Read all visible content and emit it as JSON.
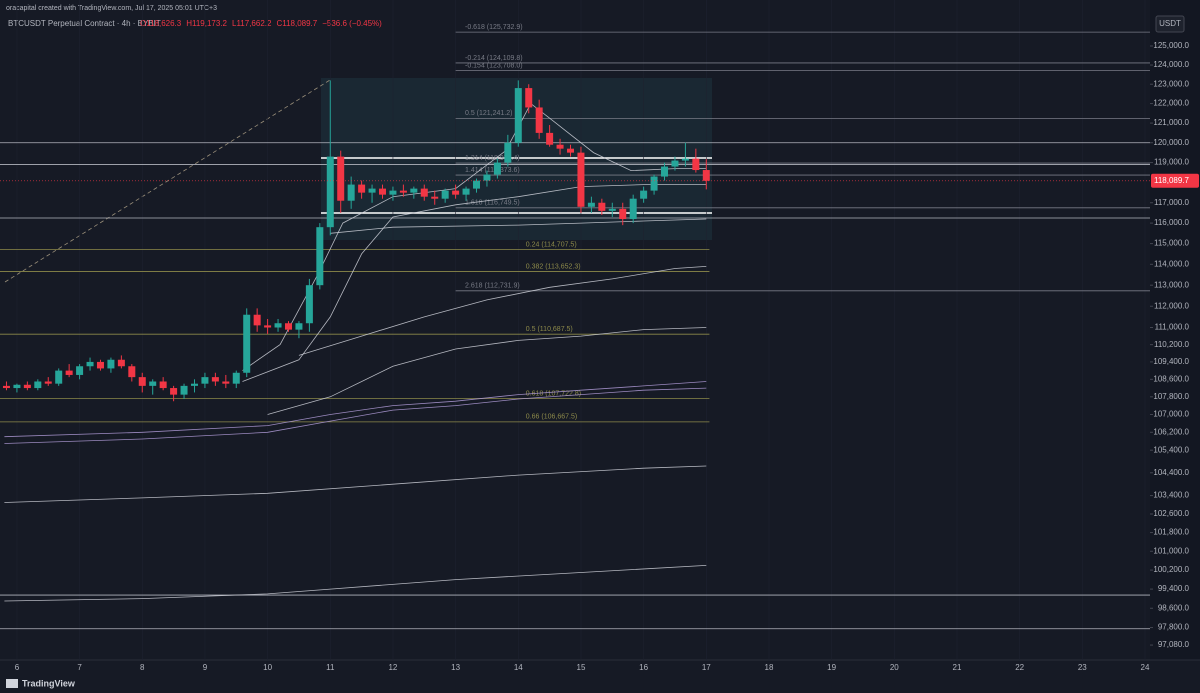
{
  "header": {
    "credit": "oracapital created with TradingView.com, Jul 17, 2025 05:01 UTC+3",
    "symbol": "BTCUSDT Perpetual Contract · 4h · BYBIT",
    "ohlc": [
      "O118,626.3",
      "H119,173.2",
      "L117,662.2",
      "C118,089.7",
      "−536.6 (−0.45%)"
    ],
    "currency": "USDT",
    "logo": "TradingView"
  },
  "chart_data": {
    "type": "candlestick",
    "log_scale": true,
    "up_color": "#26a69a",
    "down_color": "#f23645",
    "xlim": [
      5.73,
      24.08
    ],
    "xticks": [
      6,
      7,
      8,
      9,
      10,
      11,
      12,
      13,
      14,
      15,
      16,
      17,
      18,
      19,
      20,
      21,
      22,
      23,
      24
    ],
    "ylim": [
      96470,
      127450
    ],
    "yticks": [
      {
        "value": 125000,
        "label": "125,000.0"
      },
      {
        "value": 124000,
        "label": "124,000.0"
      },
      {
        "value": 123000,
        "label": "123,000.0"
      },
      {
        "value": 122000,
        "label": "122,000.0"
      },
      {
        "value": 121000,
        "label": "121,000.0"
      },
      {
        "value": 120000,
        "label": "120,000.0"
      },
      {
        "value": 119000,
        "label": "119,000.0"
      },
      {
        "value": 117000,
        "label": "117,000.0"
      },
      {
        "value": 116000,
        "label": "116,000.0"
      },
      {
        "value": 115000,
        "label": "115,000.0"
      },
      {
        "value": 114000,
        "label": "114,000.0"
      },
      {
        "value": 113000,
        "label": "113,000.0"
      },
      {
        "value": 112000,
        "label": "112,000.0"
      },
      {
        "value": 111000,
        "label": "111,000.0"
      },
      {
        "value": 110200,
        "label": "110,200.0"
      },
      {
        "value": 109400,
        "label": "109,400.0"
      },
      {
        "value": 108600,
        "label": "108,600.0"
      },
      {
        "value": 107800,
        "label": "107,800.0"
      },
      {
        "value": 107000,
        "label": "107,000.0"
      },
      {
        "value": 106200,
        "label": "106,200.0"
      },
      {
        "value": 105400,
        "label": "105,400.0"
      },
      {
        "value": 104400,
        "label": "104,400.0"
      },
      {
        "value": 103400,
        "label": "103,400.0"
      },
      {
        "value": 102600,
        "label": "102,600.0"
      },
      {
        "value": 101800,
        "label": "101,800.0"
      },
      {
        "value": 101000,
        "label": "101,000.0"
      },
      {
        "value": 100200,
        "label": "100,200.0"
      },
      {
        "value": 99400,
        "label": "99,400.0"
      },
      {
        "value": 98600,
        "label": "98,600.0"
      },
      {
        "value": 97800,
        "label": "97,800.0"
      },
      {
        "value": 97080,
        "label": "97,080.0"
      }
    ],
    "last_price": {
      "value": 118089.7,
      "label": "118,089.7"
    },
    "candles": {
      "x": [
        5.8333,
        6.0,
        6.1667,
        6.3333,
        6.5,
        6.6667,
        6.8333,
        7.0,
        7.1667,
        7.3333,
        7.5,
        7.6667,
        7.8333,
        8.0,
        8.1667,
        8.3333,
        8.5,
        8.6667,
        8.8333,
        9.0,
        9.1667,
        9.3333,
        9.5,
        9.6667,
        9.8333,
        10.0,
        10.1667,
        10.3333,
        10.5,
        10.6667,
        10.8333,
        11.0,
        11.1667,
        11.3333,
        11.5,
        11.6667,
        11.8333,
        12.0,
        12.1667,
        12.3333,
        12.5,
        12.6667,
        12.8333,
        13.0,
        13.1667,
        13.3333,
        13.5,
        13.6667,
        13.8333,
        14.0,
        14.1667,
        14.3333,
        14.5,
        14.6667,
        14.8333,
        15.0,
        15.1667,
        15.3333,
        15.5,
        15.6667,
        15.8333,
        16.0,
        16.1667,
        16.3333,
        16.5,
        16.6667,
        16.8333,
        17.0
      ],
      "open": [
        108300,
        108200,
        108350,
        108200,
        108500,
        108400,
        109000,
        108800,
        109200,
        109400,
        109100,
        109500,
        109200,
        108700,
        108300,
        108500,
        108200,
        107900,
        108300,
        108400,
        108700,
        108500,
        108400,
        108900,
        111600,
        111100,
        111000,
        111200,
        110900,
        111200,
        113000,
        115800,
        119300,
        117100,
        117900,
        117500,
        117700,
        117400,
        117600,
        117500,
        117700,
        117300,
        117200,
        117600,
        117400,
        117700,
        118100,
        118400,
        119000,
        120000,
        122800,
        121800,
        120500,
        119900,
        119700,
        119500,
        116800,
        117000,
        116600,
        116700,
        116200,
        117200,
        117600,
        118300,
        118800,
        119100,
        119200,
        118626.3
      ],
      "high": [
        108500,
        108400,
        108500,
        108600,
        108700,
        109100,
        109300,
        109300,
        109600,
        109500,
        109600,
        109700,
        109300,
        108900,
        108600,
        108700,
        108300,
        108400,
        108600,
        108900,
        108900,
        108800,
        109000,
        111900,
        111900,
        111400,
        111400,
        111300,
        111300,
        113300,
        116000,
        123200,
        119600,
        118300,
        118100,
        117900,
        117900,
        117800,
        117900,
        117800,
        117900,
        117600,
        117700,
        117900,
        117800,
        118200,
        118600,
        119200,
        120400,
        123200,
        123000,
        122200,
        120900,
        120200,
        119900,
        119800,
        117300,
        117200,
        117000,
        117000,
        117400,
        117800,
        118400,
        119000,
        119300,
        120000,
        119700,
        119173.2
      ],
      "low": [
        108100,
        108000,
        108100,
        108100,
        108300,
        108300,
        108700,
        108600,
        109000,
        109000,
        108900,
        109100,
        108500,
        108000,
        107900,
        108100,
        107600,
        107700,
        108000,
        108200,
        108300,
        108200,
        108200,
        108700,
        110800,
        110700,
        110800,
        110800,
        110500,
        110800,
        112800,
        115400,
        116500,
        116700,
        117200,
        117000,
        117200,
        117100,
        117300,
        117200,
        117100,
        116900,
        117000,
        117200,
        117100,
        117500,
        117800,
        118200,
        118800,
        119800,
        121500,
        120200,
        119800,
        119400,
        119300,
        116500,
        116500,
        116400,
        116300,
        115900,
        116000,
        117000,
        117400,
        118100,
        118600,
        118800,
        118500,
        117662.2
      ],
      "close": [
        108200,
        108350,
        108200,
        108500,
        108400,
        109000,
        108800,
        109200,
        109400,
        109100,
        109500,
        109200,
        108700,
        108300,
        108500,
        108200,
        107900,
        108300,
        108400,
        108700,
        108500,
        108400,
        108900,
        111600,
        111100,
        111000,
        111200,
        110900,
        111200,
        113000,
        115800,
        119300,
        117100,
        117900,
        117500,
        117700,
        117400,
        117600,
        117500,
        117700,
        117300,
        117200,
        117600,
        117400,
        117700,
        118100,
        118400,
        119000,
        120000,
        122800,
        121800,
        120500,
        119900,
        119700,
        119500,
        116800,
        117000,
        116600,
        116700,
        116200,
        117200,
        117600,
        118300,
        118800,
        119100,
        119200,
        118626,
        118089.7
      ]
    },
    "overlays": [
      {
        "color": "#d1d4dc",
        "x": [
          9.6,
          10.2,
          10.8,
          11.2,
          12,
          13,
          13.8,
          14.2,
          14.6,
          15.2,
          15.8,
          16.5,
          17
        ],
        "values": [
          109000,
          110200,
          113500,
          116000,
          117300,
          117700,
          119600,
          122000,
          121000,
          119500,
          118600,
          118700,
          118700
        ]
      },
      {
        "color": "#d1d4dc",
        "x": [
          9.6,
          10.5,
          11,
          11.5,
          12,
          13,
          14,
          15,
          16,
          17
        ],
        "values": [
          108500,
          109500,
          111500,
          114500,
          116300,
          116900,
          117300,
          117800,
          117900,
          117900
        ]
      },
      {
        "color": "#d1d4dc",
        "x": [
          11,
          12,
          14,
          15,
          16,
          17
        ],
        "values": [
          115500,
          115800,
          115900,
          116000,
          116100,
          116200
        ]
      },
      {
        "color": "#d1d4dc",
        "x": [
          10.5,
          11.5,
          12.5,
          13.5,
          14.5,
          15.5,
          16.5,
          17
        ],
        "values": [
          109700,
          110600,
          111500,
          112300,
          112900,
          113300,
          113800,
          113900
        ]
      },
      {
        "color": "#d1d4dc",
        "x": [
          10,
          11,
          12,
          13,
          14,
          15,
          16,
          17
        ],
        "values": [
          107000,
          107800,
          109200,
          110000,
          110400,
          110600,
          110900,
          111000
        ]
      },
      {
        "color": "#b39ddb",
        "x": [
          5.8,
          8,
          10,
          11,
          12,
          13,
          14,
          15,
          16,
          17
        ],
        "values": [
          106000,
          106200,
          106500,
          107000,
          107400,
          107600,
          107900,
          108100,
          108300,
          108500
        ]
      },
      {
        "color": "#b39ddb",
        "x": [
          5.8,
          8,
          10,
          11,
          12,
          13,
          14,
          15,
          16,
          17
        ],
        "values": [
          105700,
          105900,
          106200,
          106700,
          107200,
          107400,
          107700,
          107900,
          108100,
          108200
        ]
      },
      {
        "color": "#d1d4dc",
        "x": [
          5.8,
          8,
          10,
          12,
          14,
          16,
          17
        ],
        "values": [
          103100,
          103300,
          103500,
          103900,
          104300,
          104600,
          104700
        ]
      },
      {
        "color": "#d1d4dc",
        "x": [
          5.8,
          8,
          10,
          11,
          13,
          15,
          17
        ],
        "values": [
          98900,
          99000,
          99200,
          99400,
          99800,
          100100,
          100400
        ]
      }
    ],
    "levels": [
      120000,
      118900,
      116250,
      99150,
      97750
    ],
    "fib_levels": [
      {
        "label": "-0.618 (125,732.9)",
        "price": 125732.9,
        "extend": "right",
        "color": "#787b86"
      },
      {
        "label": "-0.214 (124,109.8)",
        "price": 124109.8,
        "extend": "right",
        "color": "#787b86"
      },
      {
        "label": "-0.154 (123,708.0)",
        "price": 123708.0,
        "extend": "right",
        "color": "#787b86"
      },
      {
        "label": "0.5 (121,241.2)",
        "price": 121241.2,
        "extend": "right",
        "color": "#787b86"
      },
      {
        "label": "1.314 (118,974.4)",
        "price": 118974.4,
        "extend": "right",
        "color": "#787b86"
      },
      {
        "label": "1.414 (118,373.6)",
        "price": 118373.6,
        "extend": "right",
        "color": "#787b86"
      },
      {
        "label": "1.618 (116,749.5)",
        "price": 116749.5,
        "extend": "right",
        "color": "#787b86"
      },
      {
        "label": "0.24 (114,707.5)",
        "price": 114707.5,
        "extend": "left",
        "color": "#8d8a4a"
      },
      {
        "label": "0.382 (113,652.3)",
        "price": 113652.3,
        "extend": "left",
        "color": "#8d8a4a"
      },
      {
        "label": "2.618 (112,731.9)",
        "price": 112731.9,
        "extend": "right",
        "color": "#787b86"
      },
      {
        "label": "0.5 (110,687.5)",
        "price": 110687.5,
        "extend": "left",
        "color": "#8d8a4a"
      },
      {
        "label": "0.618 (107,722.8)",
        "price": 107722.8,
        "extend": "left",
        "color": "#8d8a4a"
      },
      {
        "label": "0.66 (106,667.5)",
        "price": 106667.5,
        "extend": "left",
        "color": "#8d8a4a"
      }
    ]
  }
}
